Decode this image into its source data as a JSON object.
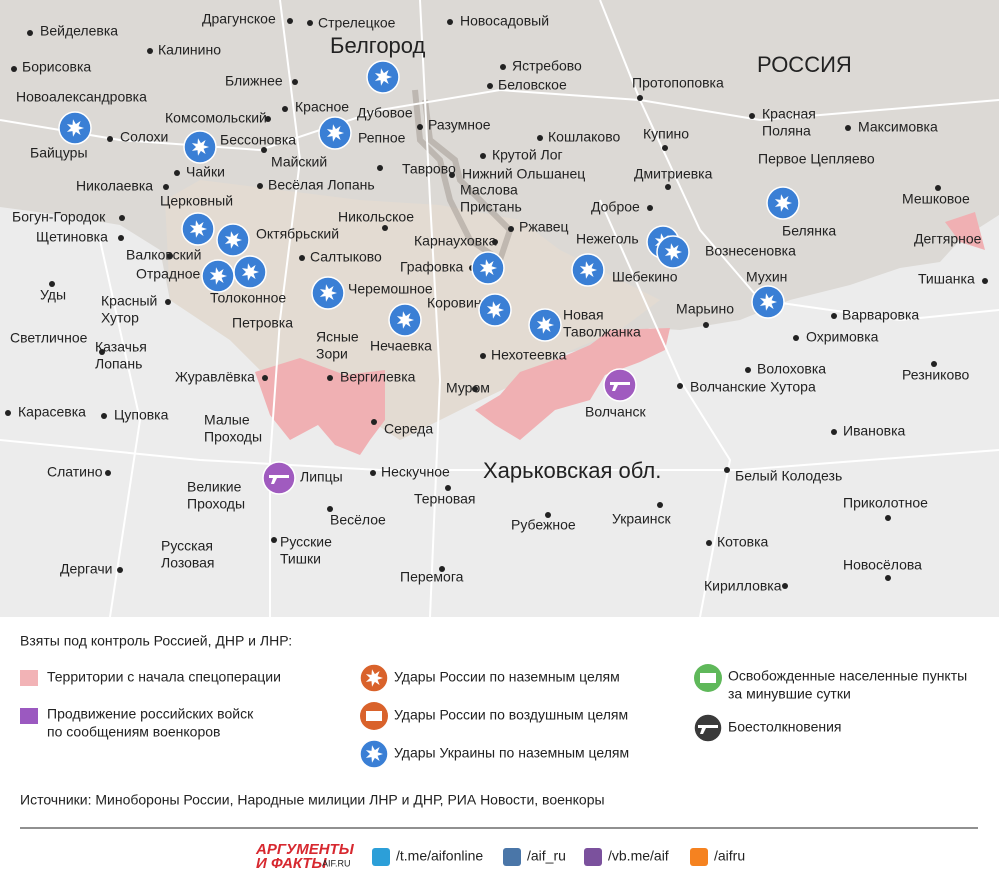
{
  "map": {
    "titles": [
      "Белгород",
      "РОССИЯ",
      "Харьковская обл."
    ],
    "places": [
      {
        "lines": [
          "Драгунское"
        ]
      },
      {
        "lines": [
          "Стрелецкое"
        ]
      },
      {
        "lines": [
          "Новосадовый"
        ]
      },
      {
        "lines": [
          "Вейделевка"
        ]
      },
      {
        "lines": [
          "Калинино"
        ]
      },
      {
        "lines": [
          "Борисовка"
        ]
      },
      {
        "lines": [
          "Ястребово"
        ]
      },
      {
        "lines": [
          "Ближнее"
        ]
      },
      {
        "lines": [
          "Беловское"
        ]
      },
      {
        "lines": [
          "Протопоповка"
        ]
      },
      {
        "lines": [
          "Новоалександровка"
        ]
      },
      {
        "lines": [
          "Красная",
          "Поляна"
        ]
      },
      {
        "lines": [
          "Красное"
        ]
      },
      {
        "lines": [
          "Дубовое"
        ]
      },
      {
        "lines": [
          "Комсомольский"
        ]
      },
      {
        "lines": [
          "Разумное"
        ]
      },
      {
        "lines": [
          "Максимовка"
        ]
      },
      {
        "lines": [
          "Солохи"
        ]
      },
      {
        "lines": [
          "Бессоновка"
        ]
      },
      {
        "lines": [
          "Репное"
        ]
      },
      {
        "lines": [
          "Кошлаково"
        ]
      },
      {
        "lines": [
          "Купино"
        ]
      },
      {
        "lines": [
          "Байцуры"
        ]
      },
      {
        "lines": [
          "Майский"
        ]
      },
      {
        "lines": [
          "Крутой Лог"
        ]
      },
      {
        "lines": [
          "Первое Цепляево"
        ]
      },
      {
        "lines": [
          "Чайки"
        ]
      },
      {
        "lines": [
          "Таврово"
        ]
      },
      {
        "lines": [
          "Нижний Ольшанец"
        ]
      },
      {
        "lines": [
          "Дмитриевка"
        ]
      },
      {
        "lines": [
          "Николаевка"
        ]
      },
      {
        "lines": [
          "Весёлая Лопань"
        ]
      },
      {
        "lines": [
          "Маслова",
          "Пристань"
        ]
      },
      {
        "lines": [
          "Мешковое"
        ]
      },
      {
        "lines": [
          "Церковный"
        ]
      },
      {
        "lines": [
          "Доброе"
        ]
      },
      {
        "lines": [
          "Богун-Городок"
        ]
      },
      {
        "lines": [
          "Никольское"
        ]
      },
      {
        "lines": [
          "Белянка"
        ]
      },
      {
        "lines": [
          "Щетиновка"
        ]
      },
      {
        "lines": [
          "Ржавец"
        ]
      },
      {
        "lines": [
          "Октябрьский"
        ]
      },
      {
        "lines": [
          "Нежеголь"
        ]
      },
      {
        "lines": [
          "Карнауховка"
        ]
      },
      {
        "lines": [
          "Дегтярное"
        ]
      },
      {
        "lines": [
          "Валковский"
        ]
      },
      {
        "lines": [
          "Салтыково"
        ]
      },
      {
        "lines": [
          "Вознесеновка"
        ]
      },
      {
        "lines": [
          "Графовка"
        ]
      },
      {
        "lines": [
          "Отрадное"
        ]
      },
      {
        "lines": [
          "Шебекино"
        ]
      },
      {
        "lines": [
          "Мухин"
        ]
      },
      {
        "lines": [
          "Тишанка"
        ]
      },
      {
        "lines": [
          "Уды"
        ]
      },
      {
        "lines": [
          "Толоконное"
        ]
      },
      {
        "lines": [
          "Черемошное"
        ]
      },
      {
        "lines": [
          "Красный",
          "Хутор"
        ]
      },
      {
        "lines": [
          "Марьино"
        ]
      },
      {
        "lines": [
          "Варваровка"
        ]
      },
      {
        "lines": [
          "Новая",
          "Таволжанка"
        ]
      },
      {
        "lines": [
          "Коровино"
        ]
      },
      {
        "lines": [
          "Петровка"
        ]
      },
      {
        "lines": [
          "Ясные",
          "Зори"
        ]
      },
      {
        "lines": [
          "Нечаевка"
        ]
      },
      {
        "lines": [
          "Охримовка"
        ]
      },
      {
        "lines": [
          "Светличное"
        ]
      },
      {
        "lines": [
          "Казачья",
          "Лопань"
        ]
      },
      {
        "lines": [
          "Нехотеевка"
        ]
      },
      {
        "lines": [
          "Волоховка"
        ]
      },
      {
        "lines": [
          "Журавлёвка"
        ]
      },
      {
        "lines": [
          "Вергилевка"
        ]
      },
      {
        "lines": [
          "Резниково"
        ]
      },
      {
        "lines": [
          "Волчанские Хутора"
        ]
      },
      {
        "lines": [
          "Муром"
        ]
      },
      {
        "lines": [
          "Карасевка"
        ]
      },
      {
        "lines": [
          "Цуповка"
        ]
      },
      {
        "lines": [
          "Волчанск"
        ]
      },
      {
        "lines": [
          "Малые",
          "Проходы"
        ]
      },
      {
        "lines": [
          "Середа"
        ]
      },
      {
        "lines": [
          "Ивановка"
        ]
      },
      {
        "lines": [
          "Слатино"
        ]
      },
      {
        "lines": [
          "Нескучное"
        ]
      },
      {
        "lines": [
          "Липцы"
        ]
      },
      {
        "lines": [
          "Белый Колодезь"
        ]
      },
      {
        "lines": [
          "Великие",
          "Проходы"
        ]
      },
      {
        "lines": [
          "Терновая"
        ]
      },
      {
        "lines": [
          "Приколотное"
        ]
      },
      {
        "lines": [
          "Весёлое"
        ]
      },
      {
        "lines": [
          "Украинск"
        ]
      },
      {
        "lines": [
          "Рубежное"
        ]
      },
      {
        "lines": [
          "Русская",
          "Лозовая"
        ]
      },
      {
        "lines": [
          "Русские",
          "Тишки"
        ]
      },
      {
        "lines": [
          "Котовка"
        ]
      },
      {
        "lines": [
          "Новосёлова"
        ]
      },
      {
        "lines": [
          "Дергачи"
        ]
      },
      {
        "lines": [
          "Перемога"
        ]
      },
      {
        "lines": [
          "Кирилловка"
        ]
      }
    ]
  },
  "legend": {
    "title": "Взяты под контроль Россией, ДНР и ЛНР:",
    "items": [
      {
        "lines": [
          "Территории с начала спецоперации"
        ]
      },
      {
        "lines": [
          "Продвижение российских войск",
          "по сообщениям военкоров"
        ]
      },
      {
        "lines": [
          "Удары России по наземным целям"
        ]
      },
      {
        "lines": [
          "Удары России по воздушным целям"
        ]
      },
      {
        "lines": [
          "Удары Украины по наземным целям"
        ]
      },
      {
        "lines": [
          "Освобожденные населенные пункты",
          "за минувшие сутки"
        ]
      },
      {
        "lines": [
          "Боестолкновения"
        ]
      }
    ]
  },
  "sources": "Источники: Минобороны России, Народные милиции ЛНР и ДНР, РИА Новости, военкоры",
  "footer": {
    "logo": [
      "АРГУМЕНТЫ",
      "И ФАКТЫ"
    ],
    "logo_site": "AIF.RU",
    "links": [
      "/t.me/aifonline",
      "/aif_ru",
      "/vb.me/aif",
      "/aifru"
    ]
  }
}
